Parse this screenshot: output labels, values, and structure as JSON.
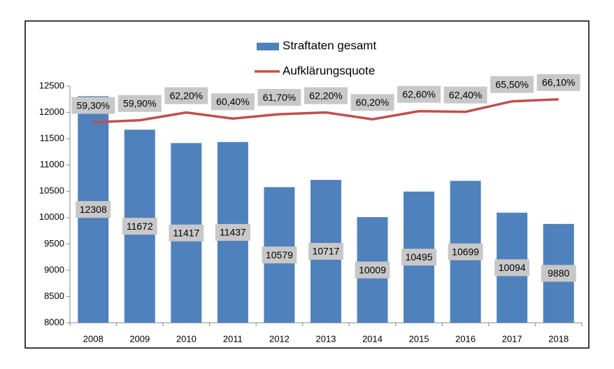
{
  "chart_data": {
    "type": "bar_line",
    "categories": [
      "2008",
      "2009",
      "2010",
      "2011",
      "2012",
      "2013",
      "2014",
      "2015",
      "2016",
      "2017",
      "2018"
    ],
    "series": [
      {
        "name": "Straftaten gesamt",
        "type": "bar",
        "color": "#4f81bd",
        "values": [
          12308,
          11672,
          11417,
          11437,
          10579,
          10717,
          10009,
          10495,
          10699,
          10094,
          9880
        ]
      },
      {
        "name": "Aufklärungsquote",
        "type": "line",
        "color": "#c0504d",
        "axis": "y2",
        "values": [
          59.3,
          59.9,
          62.2,
          60.4,
          61.7,
          62.2,
          60.2,
          62.6,
          62.4,
          65.5,
          66.1
        ],
        "value_labels": [
          "59,30%",
          "59,90%",
          "62,20%",
          "60,40%",
          "61,70%",
          "62,20%",
          "60,20%",
          "62,60%",
          "62,40%",
          "65,50%",
          "66,10%"
        ]
      }
    ],
    "ylim": [
      8000,
      12500
    ],
    "yticks": [
      8000,
      8500,
      9000,
      9500,
      10000,
      10500,
      11000,
      11500,
      12000,
      12500
    ],
    "y2lim": [
      0,
      70
    ],
    "grid": false,
    "legend": "top"
  }
}
